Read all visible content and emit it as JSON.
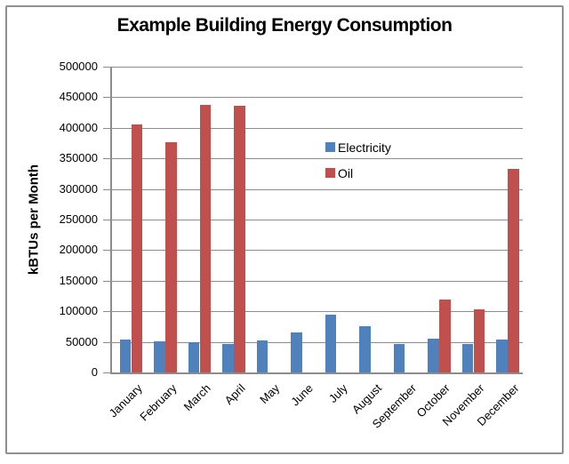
{
  "chart_data": {
    "type": "bar",
    "title": "Example Building Energy Consumption",
    "xlabel": "",
    "ylabel": "kBTUs per Month",
    "categories": [
      "January",
      "February",
      "March",
      "April",
      "May",
      "June",
      "July",
      "August",
      "September",
      "October",
      "November",
      "December"
    ],
    "series": [
      {
        "name": "Electricity",
        "color": "#4F81BD",
        "values": [
          54000,
          51000,
          49000,
          46000,
          53000,
          65000,
          95000,
          75000,
          47000,
          55000,
          46000,
          54000
        ]
      },
      {
        "name": "Oil",
        "color": "#C0504D",
        "values": [
          405000,
          376000,
          437000,
          436000,
          0,
          0,
          0,
          0,
          0,
          119000,
          103000,
          333000
        ]
      }
    ],
    "ylim": [
      0,
      500000
    ],
    "yticks": [
      0,
      50000,
      100000,
      150000,
      200000,
      250000,
      300000,
      350000,
      400000,
      450000,
      500000
    ],
    "grid": true,
    "gridline_color": "#8c8c8c",
    "legend_position": "inside-center-right",
    "x_label_rotation_deg": 45
  }
}
